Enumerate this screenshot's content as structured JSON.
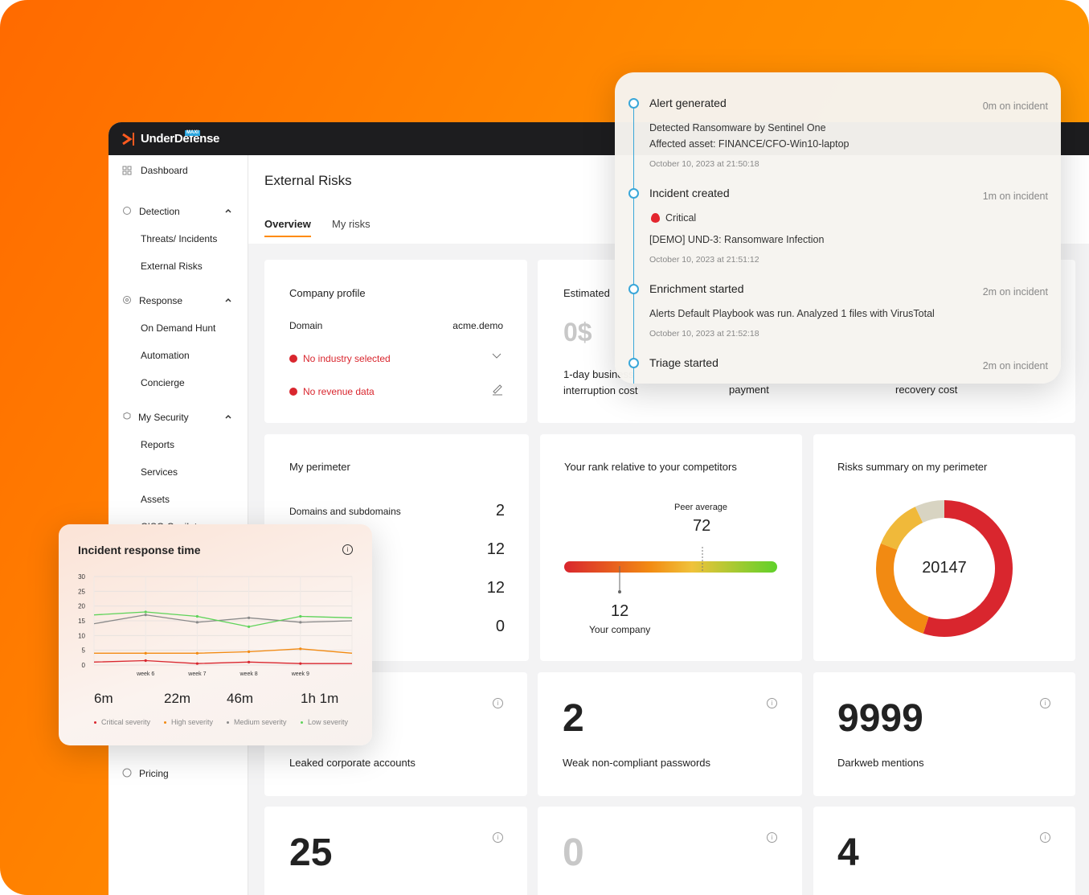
{
  "logo": {
    "name": "UnderDefense",
    "badge": "MAXI"
  },
  "sidebar": {
    "dashboard": "Dashboard",
    "detection": {
      "label": "Detection",
      "items": [
        "Threats/ Incidents",
        "External Risks"
      ]
    },
    "response": {
      "label": "Response",
      "items": [
        "On Demand Hunt",
        "Automation",
        "Concierge"
      ]
    },
    "my_security": {
      "label": "My Security",
      "items": [
        "Reports",
        "Services",
        "Assets",
        "CISO Copilot"
      ]
    },
    "pricing": "Pricing"
  },
  "page": {
    "title": "External Risks",
    "tabs": [
      "Overview",
      "My risks"
    ]
  },
  "company_profile": {
    "title": "Company profile",
    "domain_label": "Domain",
    "domain": "acme.demo",
    "industry": "No industry selected",
    "revenue": "No revenue data"
  },
  "estimated": {
    "title": "Estimated",
    "value": "0$",
    "labels": [
      "1-day business interruption cost",
      "payment",
      "recovery cost"
    ]
  },
  "perimeter": {
    "title": "My perimeter",
    "rows": [
      {
        "label": "Domains and subdomains",
        "value": 2
      },
      {
        "value": 12
      },
      {
        "value": 12
      },
      {
        "value": 0
      }
    ]
  },
  "rank": {
    "title": "Your rank relative to your competitors",
    "peer_label": "Peer average",
    "peer_value": 72,
    "company_value": 12,
    "company_label": "Your company"
  },
  "risks_summary": {
    "title": "Risks summary on my perimeter",
    "total": 20147,
    "segments": [
      {
        "color": "#d9262e",
        "value": 55
      },
      {
        "color": "#f28a12",
        "value": 26
      },
      {
        "color": "#f0b93a",
        "value": 12
      },
      {
        "color": "#d8d4c2",
        "value": 7
      }
    ]
  },
  "stats": [
    {
      "label": "Leaked corporate accounts"
    },
    {
      "value": 2,
      "label": "Weak non-compliant passwords"
    },
    {
      "value": 9999,
      "label": "Darkweb mentions"
    },
    {
      "value": 25
    },
    {
      "value": 0
    },
    {
      "value": 4
    }
  ],
  "timeline": {
    "events": [
      {
        "title": "Alert generated",
        "time": "0m on incident",
        "lines": [
          "Detected Ransomware by Sentinel One",
          "Affected asset: FINANCE/CFO-Win10-laptop"
        ],
        "date": "October 10, 2023 at 21:50:18"
      },
      {
        "title": "Incident created",
        "time": "1m on incident",
        "severity": "Critical",
        "lines": [
          "[DEMO] UND-3: Ransomware Infection"
        ],
        "date": "October 10, 2023 at 21:51:12"
      },
      {
        "title": "Enrichment started",
        "time": "2m on incident",
        "lines": [
          "Alerts Default Playbook was run. Analyzed 1 files with VirusTotal"
        ],
        "date": "October 10, 2023 at 21:52:18"
      },
      {
        "title": "Triage started",
        "time": "2m on incident"
      }
    ]
  },
  "chart_data": {
    "type": "line",
    "title": "Incident response time",
    "categories": [
      null,
      "week 6",
      "week 7",
      "week 8",
      "week 9",
      null
    ],
    "series": [
      {
        "name": "Critical severity",
        "color": "#d9262e",
        "total": "6m",
        "values": [
          1,
          1.5,
          0.5,
          1,
          0.5,
          0.5
        ]
      },
      {
        "name": "High severity",
        "color": "#f28a12",
        "total": "22m",
        "values": [
          4,
          4,
          4,
          4.5,
          5.5,
          4
        ]
      },
      {
        "name": "Medium severity",
        "color": "#8a8a8a",
        "total": "46m",
        "values": [
          14,
          17,
          14.5,
          16,
          14.5,
          15
        ]
      },
      {
        "name": "Low severity",
        "color": "#5fd35a",
        "total": "1h 1m",
        "values": [
          17,
          18,
          16.5,
          13,
          16.5,
          16
        ]
      }
    ],
    "ylim": [
      0,
      30
    ],
    "yticks": [
      0,
      5,
      10,
      15,
      20,
      25,
      30
    ],
    "grid": true
  }
}
